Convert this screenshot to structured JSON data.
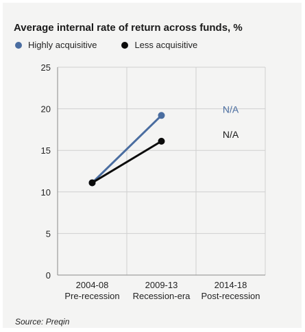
{
  "chart_data": {
    "type": "line",
    "title": "Average internal rate of return across funds, %",
    "source": "Source: Preqin",
    "categories": [
      {
        "period": "2004-08",
        "label": "Pre-recession"
      },
      {
        "period": "2009-13",
        "label": "Recession-era"
      },
      {
        "period": "2014-18",
        "label": "Post-recession"
      }
    ],
    "ylim": [
      0,
      25
    ],
    "yticks": [
      "0",
      "5",
      "10",
      "15",
      "20",
      "25"
    ],
    "grid": true,
    "legend_position": "top-left",
    "series": [
      {
        "name": "Highly acquisitive",
        "color": "#4a6da0",
        "values": [
          11.1,
          19.2,
          null
        ],
        "missing_label": "N/A"
      },
      {
        "name": "Less acquisitive",
        "color": "#0b0b0b",
        "values": [
          11.1,
          16.1,
          null
        ],
        "missing_label": "N/A"
      }
    ]
  }
}
